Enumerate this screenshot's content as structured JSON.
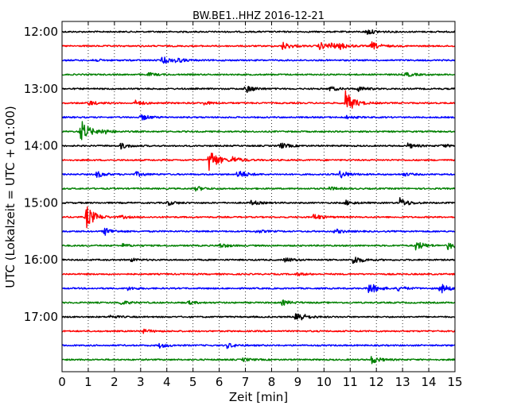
{
  "chart_data": {
    "type": "line",
    "title": "BW.BE1..HHZ 2016-12-21",
    "xlabel": "Zeit  [min]",
    "ylabel": "UTC (Lokalzeit = UTC + 01:00)",
    "xlim": [
      0,
      15
    ],
    "x_ticks": [
      "0",
      "1",
      "2",
      "3",
      "4",
      "5",
      "6",
      "7",
      "8",
      "9",
      "10",
      "11",
      "12",
      "13",
      "14",
      "15"
    ],
    "y_ticks": [
      "12:00",
      "13:00",
      "14:00",
      "15:00",
      "16:00",
      "17:00"
    ],
    "grid": true,
    "colors": [
      "#000000",
      "#ff0000",
      "#0000ff",
      "#008000"
    ],
    "traces": [
      {
        "start": "12:00",
        "events": [
          [
            11.6,
            0.4
          ]
        ]
      },
      {
        "start": "12:15",
        "events": [
          [
            8.4,
            0.5
          ],
          [
            9.8,
            0.5
          ],
          [
            10.2,
            0.4
          ],
          [
            10.6,
            0.3
          ],
          [
            11.8,
            0.5
          ]
        ]
      },
      {
        "start": "12:30",
        "events": [
          [
            3.8,
            0.5
          ],
          [
            4.3,
            0.3
          ],
          [
            1.1,
            0.2
          ]
        ]
      },
      {
        "start": "12:45",
        "events": [
          [
            13.1,
            0.3
          ],
          [
            3.3,
            0.2
          ]
        ]
      },
      {
        "start": "13:00",
        "events": [
          [
            7.0,
            0.5
          ],
          [
            10.2,
            0.3
          ],
          [
            11.3,
            0.3
          ]
        ]
      },
      {
        "start": "13:15",
        "events": [
          [
            10.8,
            1.6
          ],
          [
            1.0,
            0.3
          ],
          [
            2.8,
            0.3
          ],
          [
            5.4,
            0.2
          ]
        ]
      },
      {
        "start": "13:30",
        "events": [
          [
            3.0,
            0.4
          ],
          [
            10.8,
            0.2
          ]
        ]
      },
      {
        "start": "13:45",
        "events": [
          [
            0.7,
            1.6
          ],
          [
            1.5,
            0.3
          ]
        ]
      },
      {
        "start": "14:00",
        "events": [
          [
            2.2,
            0.4
          ],
          [
            8.3,
            0.4
          ],
          [
            13.2,
            0.3
          ],
          [
            14.5,
            0.2
          ]
        ]
      },
      {
        "start": "14:15",
        "events": [
          [
            5.6,
            1.6
          ],
          [
            6.5,
            0.4
          ]
        ]
      },
      {
        "start": "14:30",
        "events": [
          [
            1.3,
            0.4
          ],
          [
            2.8,
            0.3
          ],
          [
            6.7,
            0.6
          ],
          [
            10.6,
            0.5
          ],
          [
            13.0,
            0.2
          ]
        ]
      },
      {
        "start": "14:45",
        "events": [
          [
            5.1,
            0.3
          ],
          [
            10.2,
            0.2
          ]
        ]
      },
      {
        "start": "15:00",
        "events": [
          [
            12.9,
            0.6
          ],
          [
            4.0,
            0.3
          ],
          [
            7.2,
            0.3
          ],
          [
            10.8,
            0.3
          ]
        ]
      },
      {
        "start": "15:15",
        "events": [
          [
            0.9,
            1.6
          ],
          [
            9.6,
            0.4
          ],
          [
            2.2,
            0.2
          ]
        ]
      },
      {
        "start": "15:30",
        "events": [
          [
            1.6,
            0.5
          ],
          [
            10.4,
            0.3
          ],
          [
            7.4,
            0.2
          ]
        ]
      },
      {
        "start": "15:45",
        "events": [
          [
            13.5,
            0.6
          ],
          [
            14.7,
            0.5
          ],
          [
            6.0,
            0.3
          ],
          [
            2.3,
            0.2
          ]
        ]
      },
      {
        "start": "16:00",
        "events": [
          [
            11.1,
            0.6
          ],
          [
            8.5,
            0.3
          ],
          [
            2.6,
            0.2
          ]
        ]
      },
      {
        "start": "16:15",
        "events": [
          [
            8.9,
            0.2
          ]
        ]
      },
      {
        "start": "16:30",
        "events": [
          [
            11.7,
            0.8
          ],
          [
            14.4,
            0.7
          ],
          [
            12.8,
            0.3
          ],
          [
            2.5,
            0.2
          ]
        ]
      },
      {
        "start": "16:45",
        "events": [
          [
            2.2,
            0.3
          ],
          [
            8.4,
            0.3
          ],
          [
            4.8,
            0.2
          ]
        ]
      },
      {
        "start": "17:00",
        "events": [
          [
            8.9,
            0.9
          ],
          [
            1.8,
            0.2
          ]
        ]
      },
      {
        "start": "17:15",
        "events": [
          [
            3.0,
            0.3
          ]
        ]
      },
      {
        "start": "17:30",
        "events": [
          [
            3.7,
            0.3
          ],
          [
            6.3,
            0.3
          ]
        ]
      },
      {
        "start": "17:45",
        "events": [
          [
            11.8,
            0.5
          ],
          [
            6.9,
            0.2
          ]
        ]
      }
    ]
  }
}
